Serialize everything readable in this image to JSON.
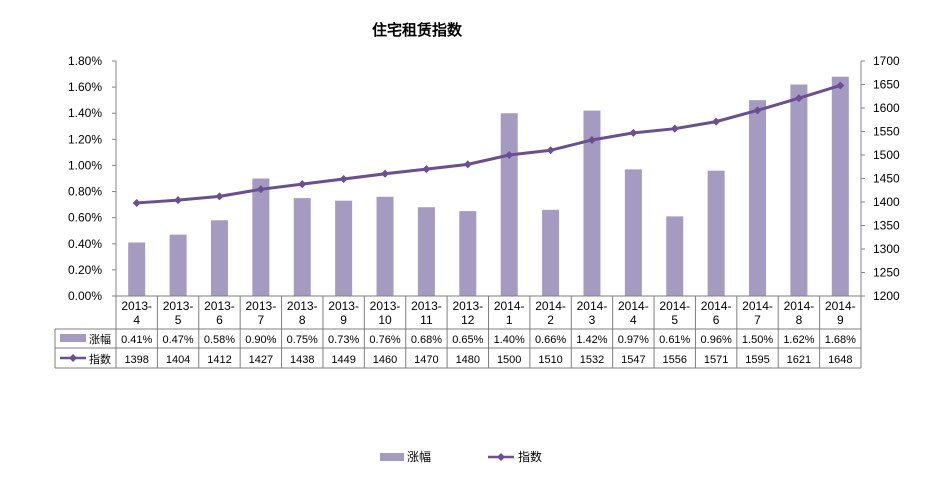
{
  "chart_data": {
    "type": "bar",
    "title": "住宅租赁指数",
    "categories": [
      [
        "2013-",
        "4"
      ],
      [
        "2013-",
        "5"
      ],
      [
        "2013-",
        "6"
      ],
      [
        "2013-",
        "7"
      ],
      [
        "2013-",
        "8"
      ],
      [
        "2013-",
        "9"
      ],
      [
        "2013-",
        "10"
      ],
      [
        "2013-",
        "11"
      ],
      [
        "2013-",
        "12"
      ],
      [
        "2014-",
        "1"
      ],
      [
        "2014-",
        "2"
      ],
      [
        "2014-",
        "3"
      ],
      [
        "2014-",
        "4"
      ],
      [
        "2014-",
        "5"
      ],
      [
        "2014-",
        "6"
      ],
      [
        "2014-",
        "7"
      ],
      [
        "2014-",
        "8"
      ],
      [
        "2014-",
        "9"
      ]
    ],
    "series": [
      {
        "name": "涨幅",
        "type": "bar",
        "axis": "left",
        "values": [
          0.41,
          0.47,
          0.58,
          0.9,
          0.75,
          0.73,
          0.76,
          0.68,
          0.65,
          1.4,
          0.66,
          1.42,
          0.97,
          0.61,
          0.96,
          1.5,
          1.62,
          1.68
        ],
        "labels": [
          "0.41%",
          "0.47%",
          "0.58%",
          "0.90%",
          "0.75%",
          "0.73%",
          "0.76%",
          "0.68%",
          "0.65%",
          "1.40%",
          "0.66%",
          "1.42%",
          "0.97%",
          "0.61%",
          "0.96%",
          "1.50%",
          "1.62%",
          "1.68%"
        ],
        "color": "#a59bc0"
      },
      {
        "name": "指数",
        "type": "line",
        "axis": "right",
        "values": [
          1398,
          1404,
          1412,
          1427,
          1438,
          1449,
          1460,
          1470,
          1480,
          1500,
          1510,
          1532,
          1547,
          1556,
          1571,
          1595,
          1621,
          1648
        ],
        "labels": [
          "1398",
          "1404",
          "1412",
          "1427",
          "1438",
          "1449",
          "1460",
          "1470",
          "1480",
          "1500",
          "1510",
          "1532",
          "1547",
          "1556",
          "1571",
          "1595",
          "1621",
          "1648"
        ],
        "color": "#6a4f94"
      }
    ],
    "y_left": {
      "range": [
        0,
        1.8
      ],
      "ticks": [
        0,
        0.2,
        0.4,
        0.6,
        0.8,
        1.0,
        1.2,
        1.4,
        1.6,
        1.8
      ],
      "tick_labels": [
        "0.00%",
        "0.20%",
        "0.40%",
        "0.60%",
        "0.80%",
        "1.00%",
        "1.20%",
        "1.40%",
        "1.60%",
        "1.80%"
      ]
    },
    "y_right": {
      "range": [
        1200,
        1700
      ],
      "ticks": [
        1200,
        1250,
        1300,
        1350,
        1400,
        1450,
        1500,
        1550,
        1600,
        1650,
        1700
      ],
      "tick_labels": [
        "1200",
        "1250",
        "1300",
        "1350",
        "1400",
        "1450",
        "1500",
        "1550",
        "1600",
        "1650",
        "1700"
      ]
    },
    "grid": false,
    "data_table": true,
    "legend_position": "bottom",
    "xlabel": "",
    "ylabel": ""
  }
}
